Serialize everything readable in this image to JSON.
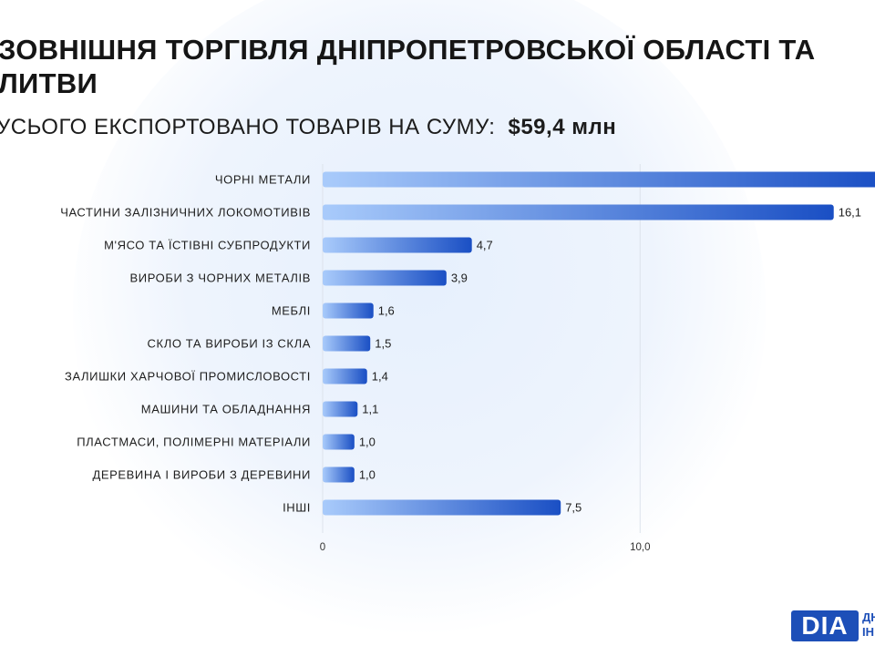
{
  "title": "ЗОВНІШНЯ ТОРГІВЛЯ ДНІПРОПЕТРОВСЬКОЇ ОБЛАСТІ ТА ЛИТВИ",
  "subtitle": {
    "text": "УСЬОГО ЕКСПОРТОВАНО ТОВАРІВ НА СУМУ:",
    "amount": "$59,4 млн"
  },
  "logo": {
    "mark": "DIA",
    "line1": "ДН",
    "line2": "ІН"
  },
  "colors": {
    "bar_start": "#a9cbfb",
    "bar_end": "#1a4fc4",
    "grid": "#dde3ec"
  },
  "chart_data": {
    "type": "bar",
    "orientation": "horizontal",
    "categories": [
      "ЧОРНІ МЕТАЛИ",
      "ЧАСТИНИ ЗАЛІЗНИЧНИХ ЛОКОМОТИВІВ",
      "М'ЯСО ТА ЇСТІВНІ СУБПРОДУКТИ",
      "ВИРОБИ З ЧОРНИХ МЕТАЛІВ",
      "МЕБЛІ",
      "СКЛО ТА ВИРОБИ ІЗ СКЛА",
      "ЗАЛИШКИ ХАРЧОВОЇ ПРОМИСЛОВОСТІ",
      "МАШИНИ ТА ОБЛАДНАННЯ",
      "ПЛАСТМАСИ, ПОЛІМЕРНІ МАТЕРІАЛИ",
      "ДЕРЕВИНА І ВИРОБИ З ДЕРЕВИНИ",
      "ІНШІ"
    ],
    "values": [
      17.6,
      16.1,
      4.7,
      3.9,
      1.6,
      1.5,
      1.4,
      1.1,
      1.0,
      1.0,
      7.5
    ],
    "value_labels": [
      "",
      "16,1",
      "4,7",
      "3,9",
      "1,6",
      "1,5",
      "1,4",
      "1,1",
      "1,0",
      "1,0",
      "7,5"
    ],
    "xticks": [
      0,
      10
    ],
    "xtick_labels": [
      "0",
      "10,0"
    ],
    "xlim": [
      0,
      17.4
    ],
    "grid": true
  }
}
